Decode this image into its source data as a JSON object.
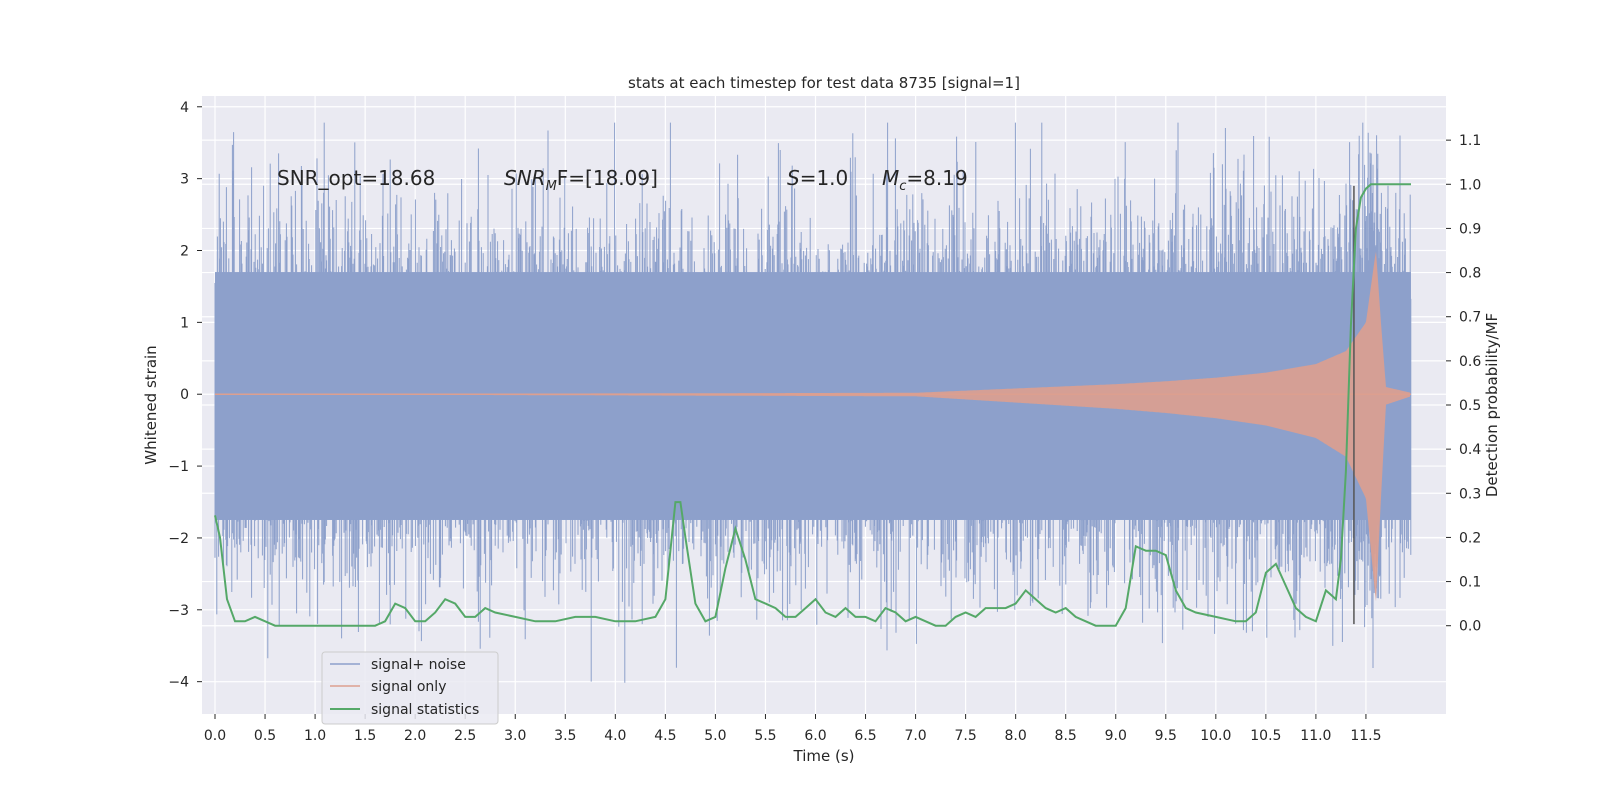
{
  "chart_data": {
    "type": "line",
    "title": "stats at each timestep for test data 8735 [signal=1]",
    "xlabel": "Time (s)",
    "ylabel": "Whitened strain",
    "y2label": "Detection probability/MF",
    "xlim": [
      -0.13,
      12.3
    ],
    "ylim": [
      -4.45,
      4.15
    ],
    "y2lim": [
      -0.2,
      1.2
    ],
    "x_ticks": [
      0.0,
      0.5,
      1.0,
      1.5,
      2.0,
      2.5,
      3.0,
      3.5,
      4.0,
      4.5,
      5.0,
      5.5,
      6.0,
      6.5,
      7.0,
      7.5,
      8.0,
      8.5,
      9.0,
      9.5,
      10.0,
      10.5,
      11.0,
      11.5
    ],
    "x_tick_labels": [
      "0.0",
      "0.5",
      "1.0",
      "1.5",
      "2.0",
      "2.5",
      "3.0",
      "3.5",
      "4.0",
      "4.5",
      "5.0",
      "5.5",
      "6.0",
      "6.5",
      "7.0",
      "7.5",
      "8.0",
      "8.5",
      "9.0",
      "9.5",
      "10.0",
      "10.5",
      "11.0",
      "11.5"
    ],
    "y_ticks": [
      -4,
      -3,
      -2,
      -1,
      0,
      1,
      2,
      3,
      4
    ],
    "y_tick_labels": [
      "−4",
      "−3",
      "−2",
      "−1",
      "0",
      "1",
      "2",
      "3",
      "4"
    ],
    "y2_ticks": [
      0.0,
      0.1,
      0.2,
      0.3,
      0.4,
      0.5,
      0.6,
      0.7,
      0.8,
      0.9,
      1.0,
      1.1
    ],
    "y2_tick_labels": [
      "0.0",
      "0.1",
      "0.2",
      "0.3",
      "0.4",
      "0.5",
      "0.6",
      "0.7",
      "0.8",
      "0.9",
      "1.0",
      "1.1"
    ],
    "grid": true,
    "legend_position": "lower-left",
    "annotations": {
      "snr_opt": "SNR_opt=18.68",
      "snr_mf_main": "SNR",
      "snr_mf_sub": "M",
      "snr_mf_rest": "F=[18.09]",
      "s_label": "S",
      "s_value": "=1.0",
      "mc_label": "M",
      "mc_sub": "c",
      "mc_value": "=8.19"
    },
    "marker_line_x": 11.38,
    "series": [
      {
        "name": "signal+ noise",
        "color": "#8da0cb",
        "style": "noise band, envelope approx. +/-2.2 with peaks to +3.7 / -4.1",
        "x_range": [
          0.0,
          11.95
        ],
        "peak_max": 3.78,
        "peak_min": -4.08
      },
      {
        "name": "signal only",
        "color": "#dd9f8f",
        "style": "chirp, amplitude rising to about +/-2.0 near merger at 11.6 s",
        "x_range": [
          0.0,
          11.95
        ],
        "envelope": {
          "x": [
            0.0,
            7.0,
            7.5,
            8.0,
            8.5,
            9.0,
            9.5,
            10.0,
            10.5,
            11.0,
            11.3,
            11.5,
            11.6,
            11.65,
            11.7,
            11.95
          ],
          "amp": [
            0.0,
            0.02,
            0.05,
            0.08,
            0.11,
            0.14,
            0.18,
            0.23,
            0.3,
            0.42,
            0.6,
            1.0,
            2.0,
            1.0,
            0.1,
            0.02
          ]
        }
      },
      {
        "name": "signal statistics",
        "color": "#55a868",
        "axis": "right",
        "x": [
          0.0,
          0.05,
          0.12,
          0.2,
          0.3,
          0.4,
          0.5,
          0.6,
          0.8,
          1.0,
          1.2,
          1.4,
          1.6,
          1.7,
          1.8,
          1.9,
          2.0,
          2.1,
          2.2,
          2.3,
          2.4,
          2.5,
          2.6,
          2.7,
          2.8,
          3.0,
          3.2,
          3.4,
          3.6,
          3.8,
          4.0,
          4.2,
          4.4,
          4.5,
          4.6,
          4.65,
          4.7,
          4.8,
          4.9,
          5.0,
          5.1,
          5.2,
          5.3,
          5.4,
          5.5,
          5.6,
          5.7,
          5.8,
          5.9,
          6.0,
          6.1,
          6.2,
          6.3,
          6.4,
          6.5,
          6.6,
          6.7,
          6.8,
          6.9,
          7.0,
          7.1,
          7.2,
          7.3,
          7.4,
          7.5,
          7.6,
          7.7,
          7.8,
          7.9,
          8.0,
          8.1,
          8.2,
          8.3,
          8.4,
          8.5,
          8.6,
          8.7,
          8.8,
          9.0,
          9.1,
          9.2,
          9.3,
          9.4,
          9.5,
          9.6,
          9.7,
          9.8,
          10.0,
          10.2,
          10.3,
          10.4,
          10.5,
          10.6,
          10.7,
          10.8,
          10.9,
          11.0,
          11.1,
          11.15,
          11.2,
          11.25,
          11.3,
          11.35,
          11.4,
          11.45,
          11.5,
          11.55,
          11.6,
          11.7,
          11.8,
          11.9,
          11.95
        ],
        "y": [
          0.25,
          0.2,
          0.06,
          0.01,
          0.01,
          0.02,
          0.01,
          0.0,
          0.0,
          0.0,
          0.0,
          0.0,
          0.0,
          0.01,
          0.05,
          0.04,
          0.01,
          0.01,
          0.03,
          0.06,
          0.05,
          0.02,
          0.02,
          0.04,
          0.03,
          0.02,
          0.01,
          0.01,
          0.02,
          0.02,
          0.01,
          0.01,
          0.02,
          0.06,
          0.28,
          0.28,
          0.2,
          0.05,
          0.01,
          0.02,
          0.13,
          0.22,
          0.15,
          0.06,
          0.05,
          0.04,
          0.02,
          0.02,
          0.04,
          0.06,
          0.03,
          0.02,
          0.04,
          0.02,
          0.02,
          0.01,
          0.04,
          0.03,
          0.01,
          0.02,
          0.01,
          0.0,
          0.0,
          0.02,
          0.03,
          0.02,
          0.04,
          0.04,
          0.04,
          0.05,
          0.08,
          0.06,
          0.04,
          0.03,
          0.04,
          0.02,
          0.01,
          0.0,
          0.0,
          0.04,
          0.18,
          0.17,
          0.17,
          0.16,
          0.08,
          0.04,
          0.03,
          0.02,
          0.01,
          0.01,
          0.03,
          0.12,
          0.14,
          0.09,
          0.04,
          0.02,
          0.01,
          0.08,
          0.07,
          0.06,
          0.15,
          0.35,
          0.68,
          0.9,
          0.97,
          0.99,
          1.0,
          1.0,
          1.0,
          1.0,
          1.0,
          1.0
        ]
      }
    ]
  }
}
